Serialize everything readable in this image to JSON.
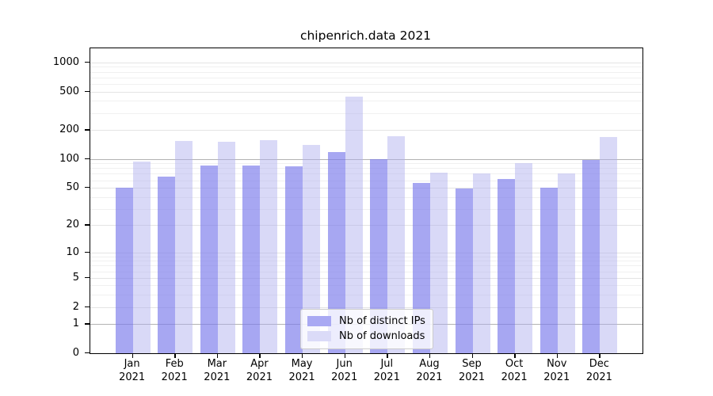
{
  "title": "chipenrich.data 2021",
  "chart_data": {
    "type": "bar",
    "title": "chipenrich.data 2021",
    "yscale": "log1p",
    "grid": "on",
    "legend_position": "lower center",
    "categories": [
      "Jan",
      "Feb",
      "Mar",
      "Apr",
      "May",
      "Jun",
      "Jul",
      "Aug",
      "Sep",
      "Oct",
      "Nov",
      "Dec"
    ],
    "year": "2021",
    "series": [
      {
        "name": "Nb of distinct IPs",
        "values": [
          50,
          65,
          86,
          85,
          84,
          118,
          99,
          56,
          49,
          62,
          50,
          97
        ],
        "bar_color": "rgba(122,122,236,0.66)",
        "legend_color": "#a9a9f3"
      },
      {
        "name": "Nb of downloads",
        "values": [
          94,
          155,
          152,
          158,
          141,
          445,
          174,
          72,
          71,
          90,
          70,
          168
        ],
        "bar_color": "rgba(173,173,238,0.46)",
        "legend_color": "#dbdbf8"
      }
    ],
    "yticks": [
      0,
      1,
      2,
      5,
      10,
      20,
      50,
      100,
      200,
      500,
      1000
    ],
    "minor_gridlines": [
      3,
      4,
      6,
      7,
      8,
      9,
      30,
      40,
      60,
      70,
      80,
      90,
      300,
      400,
      600,
      700,
      800,
      900
    ],
    "emphasis_gridlines": [
      1,
      100
    ],
    "ylim": [
      0,
      1400
    ]
  }
}
